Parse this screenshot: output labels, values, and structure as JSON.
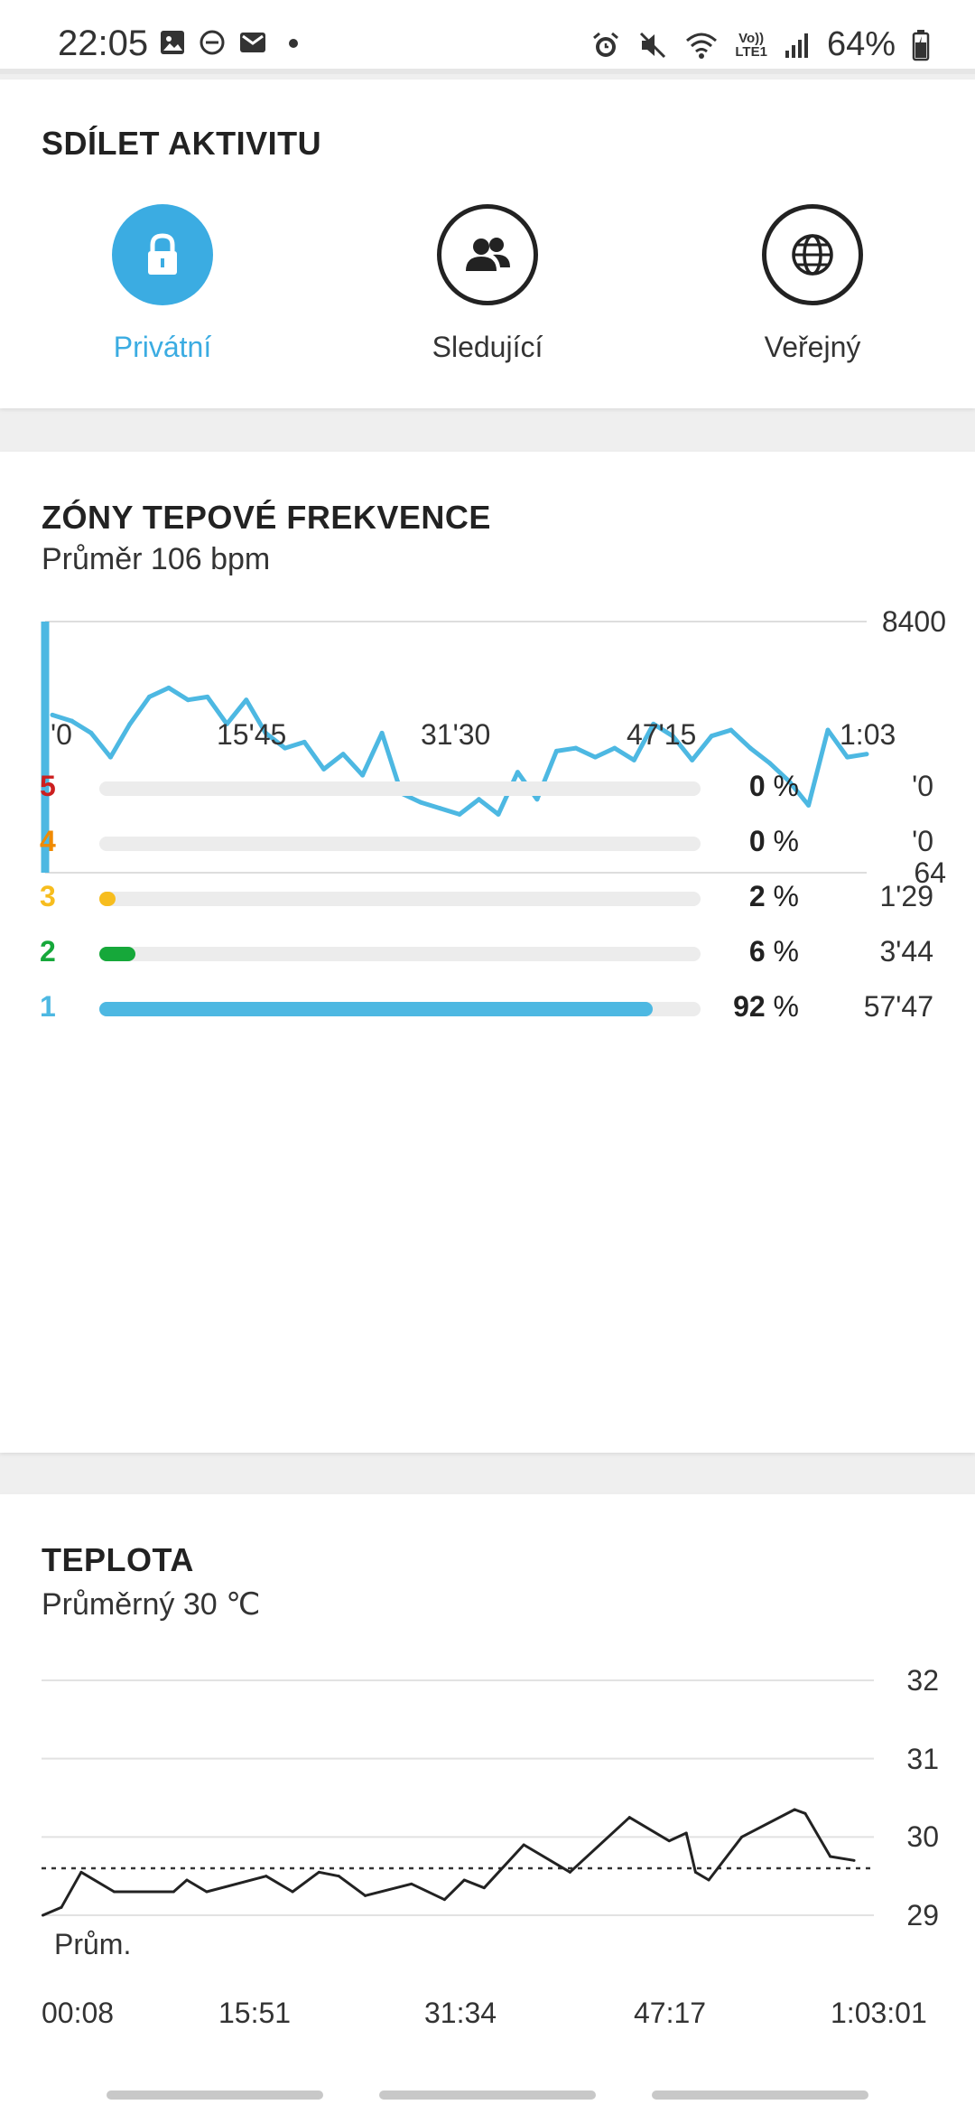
{
  "status_bar": {
    "time": "22:05",
    "left_icons": [
      "image-icon",
      "do-not-disturb-icon",
      "mail-icon",
      "dot-icon"
    ],
    "right_icons": [
      "alarm-icon",
      "mute-icon",
      "wifi-icon",
      "volte-icon",
      "signal-icon"
    ],
    "volte_top": "Vo))",
    "volte_bottom": "LTE1",
    "battery": "64%"
  },
  "share": {
    "title": "SDÍLET AKTIVITU",
    "options": [
      {
        "label": "Privátní",
        "icon": "lock-icon",
        "selected": true
      },
      {
        "label": "Sledující",
        "icon": "people-icon",
        "selected": false
      },
      {
        "label": "Veřejný",
        "icon": "globe-icon",
        "selected": false
      }
    ],
    "accent": "#3bace2"
  },
  "heart_rate": {
    "title": "ZÓNY TEPOVÉ FREKVENCE",
    "subtitle": "Průměr 106 bpm",
    "chart_data": {
      "type": "line",
      "ylim": [
        64,
        8400
      ],
      "y_ticks": [
        "8400",
        "64"
      ],
      "x_ticks": [
        "'0",
        "15'45",
        "31'30",
        "47'15",
        "1:03"
      ],
      "x_minutes": [
        0,
        1.5,
        3,
        4.5,
        6,
        7.5,
        9,
        10.5,
        12,
        13.5,
        15,
        16.5,
        18,
        19.5,
        21,
        22.5,
        24,
        25.5,
        27,
        28.5,
        30,
        31.5,
        33,
        34.5,
        36,
        37.5,
        39,
        40.5,
        42,
        43.5,
        45,
        46.5,
        48,
        49.5,
        51,
        52.5,
        54,
        55.5,
        57,
        58.5,
        60,
        61.5,
        63
      ],
      "values": [
        5300,
        5100,
        4700,
        3900,
        5000,
        5900,
        6200,
        5800,
        5900,
        5000,
        5800,
        4700,
        4200,
        4400,
        3500,
        4000,
        3300,
        4700,
        2700,
        2400,
        2200,
        2000,
        2500,
        2000,
        3400,
        2500,
        4100,
        4200,
        3900,
        4200,
        3800,
        5000,
        4600,
        3800,
        4600,
        4800,
        4200,
        3700,
        3100,
        2300,
        4800,
        3900,
        4000
      ],
      "spike_start": 8400,
      "color": "#4db8e2"
    },
    "zones": [
      {
        "zone": "5",
        "percent": 0,
        "pct_text": "0",
        "duration": "'0",
        "color": "#cc1f1f"
      },
      {
        "zone": "4",
        "percent": 0,
        "pct_text": "0",
        "duration": "'0",
        "color": "#f08a00"
      },
      {
        "zone": "3",
        "percent": 2,
        "pct_text": "2",
        "duration": "1'29",
        "color": "#f7bd1e"
      },
      {
        "zone": "2",
        "percent": 6,
        "pct_text": "6",
        "duration": "3'44",
        "color": "#16a83a"
      },
      {
        "zone": "1",
        "percent": 92,
        "pct_text": "92",
        "duration": "57'47",
        "color": "#4db8e2"
      }
    ],
    "pct_sign": "%"
  },
  "temperature": {
    "title": "TEPLOTA",
    "subtitle": "Průměrný 30 ℃",
    "avg_label": "Prům.",
    "chart_data": {
      "type": "line",
      "ylim": [
        29,
        32
      ],
      "y_ticks": [
        "32",
        "31",
        "30",
        "29"
      ],
      "x_ticks": [
        "00:08",
        "15:51",
        "31:34",
        "47:17",
        "1:03:01"
      ],
      "average": 29.6,
      "x_minutes": [
        0.1,
        1.5,
        3,
        5.5,
        10,
        11,
        12.5,
        17,
        19,
        21,
        22.5,
        24.5,
        28,
        30.5,
        32,
        33.5,
        36.5,
        40,
        44.5,
        47.5,
        48.8,
        49.5,
        50.5,
        53,
        57,
        57.8,
        59.7,
        61.5
      ],
      "values": [
        29,
        29.1,
        29.55,
        29.3,
        29.3,
        29.45,
        29.3,
        29.5,
        29.3,
        29.55,
        29.5,
        29.25,
        29.4,
        29.2,
        29.45,
        29.35,
        29.9,
        29.55,
        30.25,
        29.95,
        30.05,
        29.55,
        29.45,
        30,
        30.35,
        30.3,
        29.75,
        29.7
      ],
      "color": "#222222"
    }
  }
}
